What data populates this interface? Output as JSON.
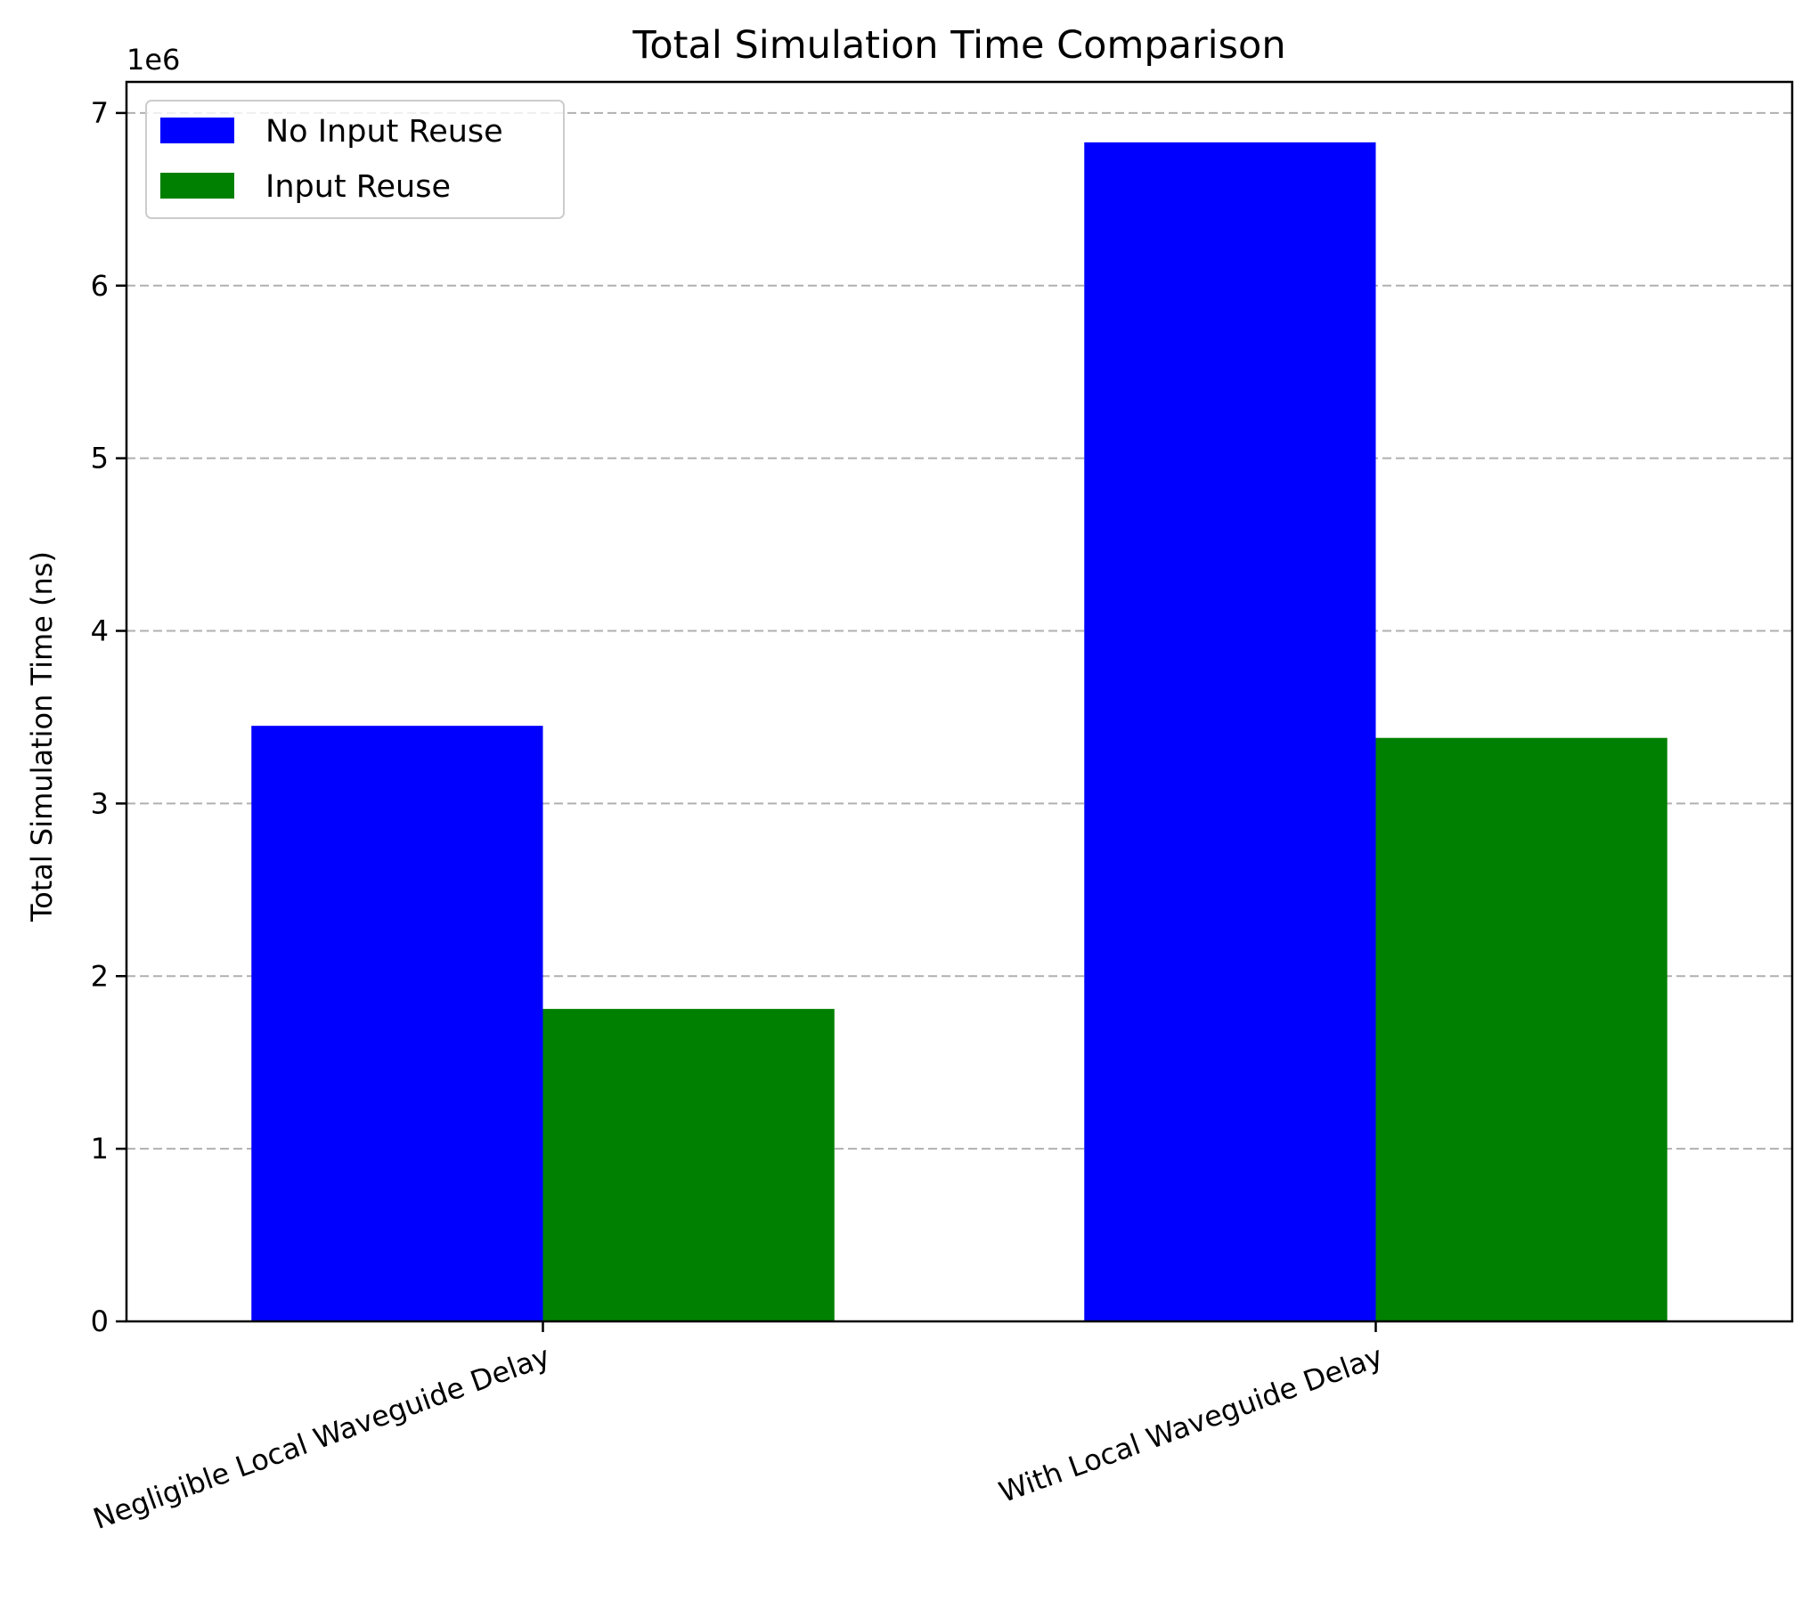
{
  "chart_data": {
    "type": "bar",
    "title": "Total Simulation Time Comparison",
    "xlabel": "",
    "ylabel": "Total Simulation Time (ns)",
    "y_offset_label": "1e6",
    "categories": [
      "Negligible Local Waveguide Delay",
      "With Local Waveguide Delay"
    ],
    "series": [
      {
        "name": "No Input Reuse",
        "color": "#0000ff",
        "values": [
          3450000,
          6830000
        ]
      },
      {
        "name": "Input Reuse",
        "color": "#008000",
        "values": [
          1810000,
          3380000
        ]
      }
    ],
    "ylim": [
      0,
      7180000
    ],
    "y_ticks": [
      0,
      1000000,
      2000000,
      3000000,
      4000000,
      5000000,
      6000000,
      7000000
    ],
    "y_tick_labels": [
      "0",
      "1",
      "2",
      "3",
      "4",
      "5",
      "6",
      "7"
    ],
    "x_tick_rotation_deg": -20,
    "grid": {
      "axis": "y",
      "style": "dashed",
      "color": "#b0b0b0"
    },
    "legend": {
      "placement": "top-left"
    }
  }
}
